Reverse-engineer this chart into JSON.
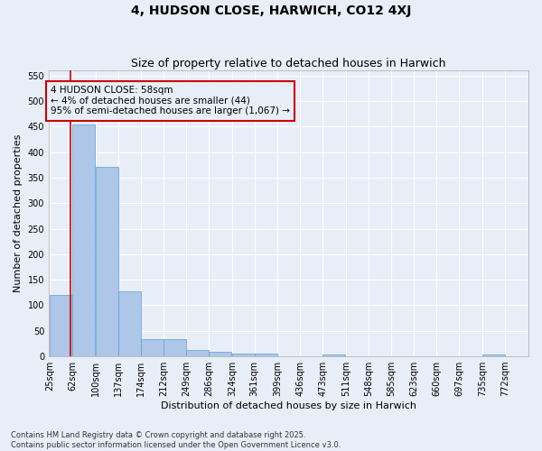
{
  "title": "4, HUDSON CLOSE, HARWICH, CO12 4XJ",
  "subtitle": "Size of property relative to detached houses in Harwich",
  "xlabel": "Distribution of detached houses by size in Harwich",
  "ylabel": "Number of detached properties",
  "bins": [
    25,
    62,
    100,
    137,
    174,
    212,
    249,
    286,
    324,
    361,
    399,
    436,
    473,
    511,
    548,
    585,
    623,
    660,
    697,
    735,
    772
  ],
  "values": [
    120,
    455,
    372,
    127,
    33,
    33,
    13,
    9,
    5,
    6,
    1,
    0,
    3,
    0,
    0,
    0,
    0,
    0,
    0,
    3
  ],
  "bar_color": "#aec6e8",
  "bar_edge_color": "#5a9fd4",
  "property_size": 58,
  "property_line_color": "#cc0000",
  "annotation_text": "4 HUDSON CLOSE: 58sqm\n← 4% of detached houses are smaller (44)\n95% of semi-detached houses are larger (1,067) →",
  "annotation_box_color": "#cc0000",
  "ylim": [
    0,
    560
  ],
  "yticks": [
    0,
    50,
    100,
    150,
    200,
    250,
    300,
    350,
    400,
    450,
    500,
    550
  ],
  "background_color": "#e8eef8",
  "footer_text": "Contains HM Land Registry data © Crown copyright and database right 2025.\nContains public sector information licensed under the Open Government Licence v3.0.",
  "title_fontsize": 10,
  "subtitle_fontsize": 9,
  "axis_label_fontsize": 8,
  "tick_fontsize": 7,
  "annotation_fontsize": 7.5,
  "figsize": [
    6.0,
    5.0
  ],
  "dpi": 100
}
